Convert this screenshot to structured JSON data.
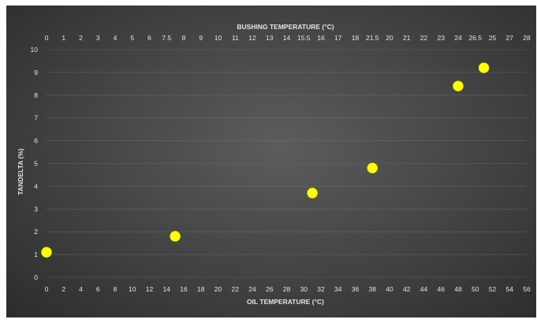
{
  "chart_data": {
    "type": "scatter",
    "title": "",
    "x_top_label": "BUSHING TEMPERATURE (°C)",
    "x_bottom_label": "OIL TEMPERATURE  (°C)",
    "ylabel": "TANDELTA (%)",
    "x_bottom_ticks": [
      "0",
      "2",
      "4",
      "6",
      "8",
      "10",
      "12",
      "14",
      "16",
      "18",
      "20",
      "22",
      "24",
      "26",
      "28",
      "30",
      "32",
      "34",
      "36",
      "38",
      "40",
      "42",
      "44",
      "46",
      "48",
      "50",
      "52",
      "54",
      "56"
    ],
    "x_top_ticks": [
      "0",
      "1",
      "2",
      "3",
      "4",
      "5",
      "6",
      "7.5",
      "8",
      "9",
      "10",
      "11",
      "12",
      "13",
      "14",
      "15.5",
      "16",
      "17",
      "18",
      "21.5",
      "20",
      "21",
      "22",
      "23",
      "24",
      "26.5",
      "25",
      "27",
      "28"
    ],
    "y_ticks": [
      "0",
      "1",
      "2",
      "3",
      "4",
      "5",
      "6",
      "7",
      "8",
      "9",
      "10"
    ],
    "xlim": [
      0,
      56
    ],
    "ylim": [
      0,
      10
    ],
    "grid": true,
    "marker_color": "#ffff00",
    "points": [
      {
        "x": 0,
        "y": 1.1
      },
      {
        "x": 15,
        "y": 1.8
      },
      {
        "x": 31,
        "y": 3.7
      },
      {
        "x": 38,
        "y": 4.8
      },
      {
        "x": 48,
        "y": 8.4
      },
      {
        "x": 51,
        "y": 9.2
      }
    ]
  }
}
